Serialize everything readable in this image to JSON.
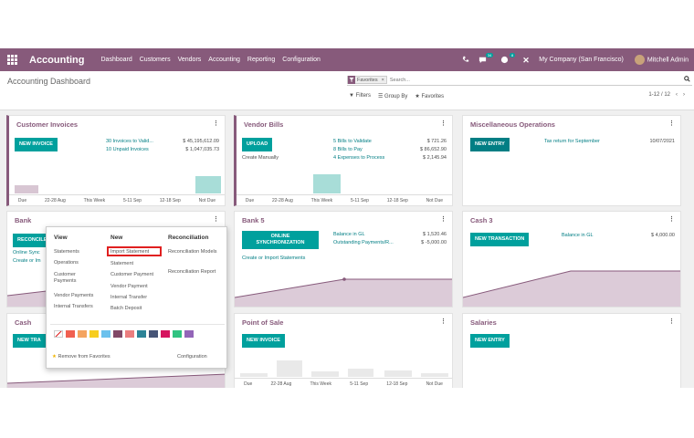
{
  "nav": {
    "brand": "Accounting",
    "menu": [
      "Dashboard",
      "Customers",
      "Vendors",
      "Accounting",
      "Reporting",
      "Configuration"
    ],
    "chat_badge": "34",
    "activity_badge": "8",
    "company": "My Company (San Francisco)",
    "user": "Mitchell Admin"
  },
  "control": {
    "title": "Accounting Dashboard",
    "facet": "Favorites",
    "search_placeholder": "Search...",
    "filters": "Filters",
    "group_by": "Group By",
    "favorites": "Favorites",
    "pager": "1-12 / 12"
  },
  "cards": {
    "customer_invoices": {
      "title": "Customer Invoices",
      "button": "NEW INVOICE",
      "links": [
        "30 Invoices to Valid...",
        "10 Unpaid Invoices"
      ],
      "amounts": [
        "$ 45,195,612.09",
        "$ 1,047,035.73"
      ],
      "axis": [
        "Due",
        "22-28 Aug",
        "This Week",
        "5-11 Sep",
        "12-18 Sep",
        "Not Due"
      ]
    },
    "vendor_bills": {
      "title": "Vendor Bills",
      "button": "UPLOAD",
      "create_manually": "Create Manually",
      "links": [
        "5 Bills to Validate",
        "8 Bills to Pay",
        "4 Expenses to Process"
      ],
      "amounts": [
        "$ 721.26",
        "$ 86,652.90",
        "$ 2,145.94"
      ],
      "axis": [
        "Due",
        "22-28 Aug",
        "This Week",
        "5-11 Sep",
        "12-18 Sep",
        "Not Due"
      ]
    },
    "misc": {
      "title": "Miscellaneous Operations",
      "button": "NEW ENTRY",
      "link": "Tax return for September",
      "date": "10/07/2021"
    },
    "bank": {
      "title": "Bank",
      "button": "RECONCILE",
      "line1": "Online Sync",
      "line2": "Create or Im"
    },
    "bank5": {
      "title": "Bank 5",
      "button_line1": "ONLINE",
      "button_line2": "SYNCHRONIZATION",
      "create_import": "Create or Import Statements",
      "links": [
        "Balance in GL",
        "Outstanding Payments/R..."
      ],
      "amounts": [
        "$ 1,520.46",
        "$ -5,000.00"
      ]
    },
    "cash3": {
      "title": "Cash 3",
      "button": "NEW TRANSACTION",
      "link": "Balance in GL",
      "amount": "$ 4,000.00"
    },
    "cash": {
      "title": "Cash",
      "button": "NEW TRA"
    },
    "pos": {
      "title": "Point of Sale",
      "button": "NEW INVOICE",
      "axis": [
        "Due",
        "22-28 Aug",
        "This Week",
        "5-11 Sep",
        "12-18 Sep",
        "Not Due"
      ]
    },
    "salaries": {
      "title": "Salaries",
      "button": "NEW ENTRY"
    }
  },
  "dropdown": {
    "view_head": "View",
    "new_head": "New",
    "recon_head": "Reconciliation",
    "view_items": [
      "Statements",
      "Operations",
      "Customer Payments",
      "Vendor Payments",
      "Internal Transfers"
    ],
    "new_items": [
      "Import Statement",
      "Statement",
      "Customer Payment",
      "Vendor Payment",
      "Internal Transfer",
      "Batch Deposit"
    ],
    "recon_items": [
      "Reconciliation Models",
      "Reconciliation Report"
    ],
    "remove_favorites": "Remove from Favorites",
    "configuration": "Configuration",
    "colors": [
      "#f06050",
      "#f4a460",
      "#f7cd1f",
      "#6cc1ed",
      "#814968",
      "#eb7e7f",
      "#2c8397",
      "#475577",
      "#d6145f",
      "#30c381",
      "#9365b8"
    ]
  }
}
